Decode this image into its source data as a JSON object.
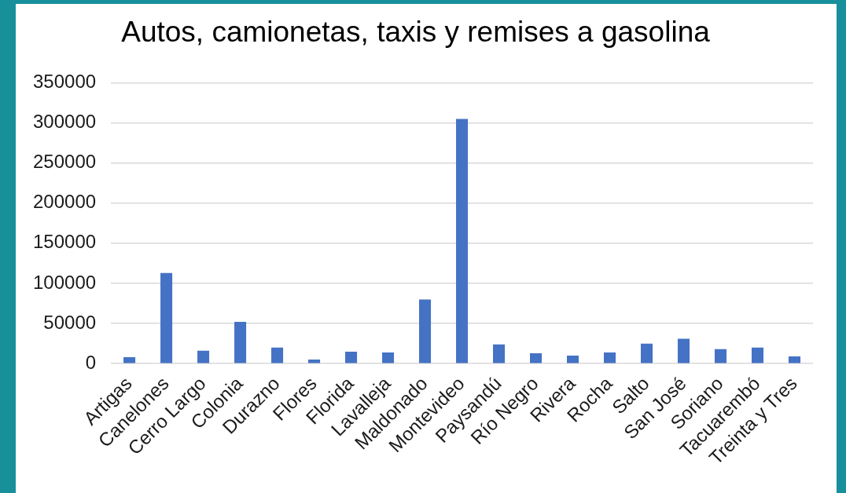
{
  "chart_data": {
    "type": "bar",
    "title": "Autos, camionetas, taxis y remises a gasolina",
    "categories": [
      "Artigas",
      "Canelones",
      "Cerro Largo",
      "Colonia",
      "Durazno",
      "Flores",
      "Florida",
      "Lavalleja",
      "Maldonado",
      "Montevideo",
      "Paysandú",
      "Río Negro",
      "Rivera",
      "Rocha",
      "Salto",
      "San José",
      "Soriano",
      "Tacuarembó",
      "Treinta y Tres"
    ],
    "values": [
      8000,
      113000,
      16000,
      52000,
      20000,
      5000,
      15000,
      14000,
      80000,
      305000,
      24000,
      13000,
      10000,
      14000,
      25000,
      31000,
      18000,
      20000,
      9000
    ],
    "color": "#4472c4",
    "ylim": [
      0,
      350000
    ],
    "yticks": [
      0,
      50000,
      100000,
      150000,
      200000,
      250000,
      300000,
      350000
    ],
    "grid": "y"
  }
}
